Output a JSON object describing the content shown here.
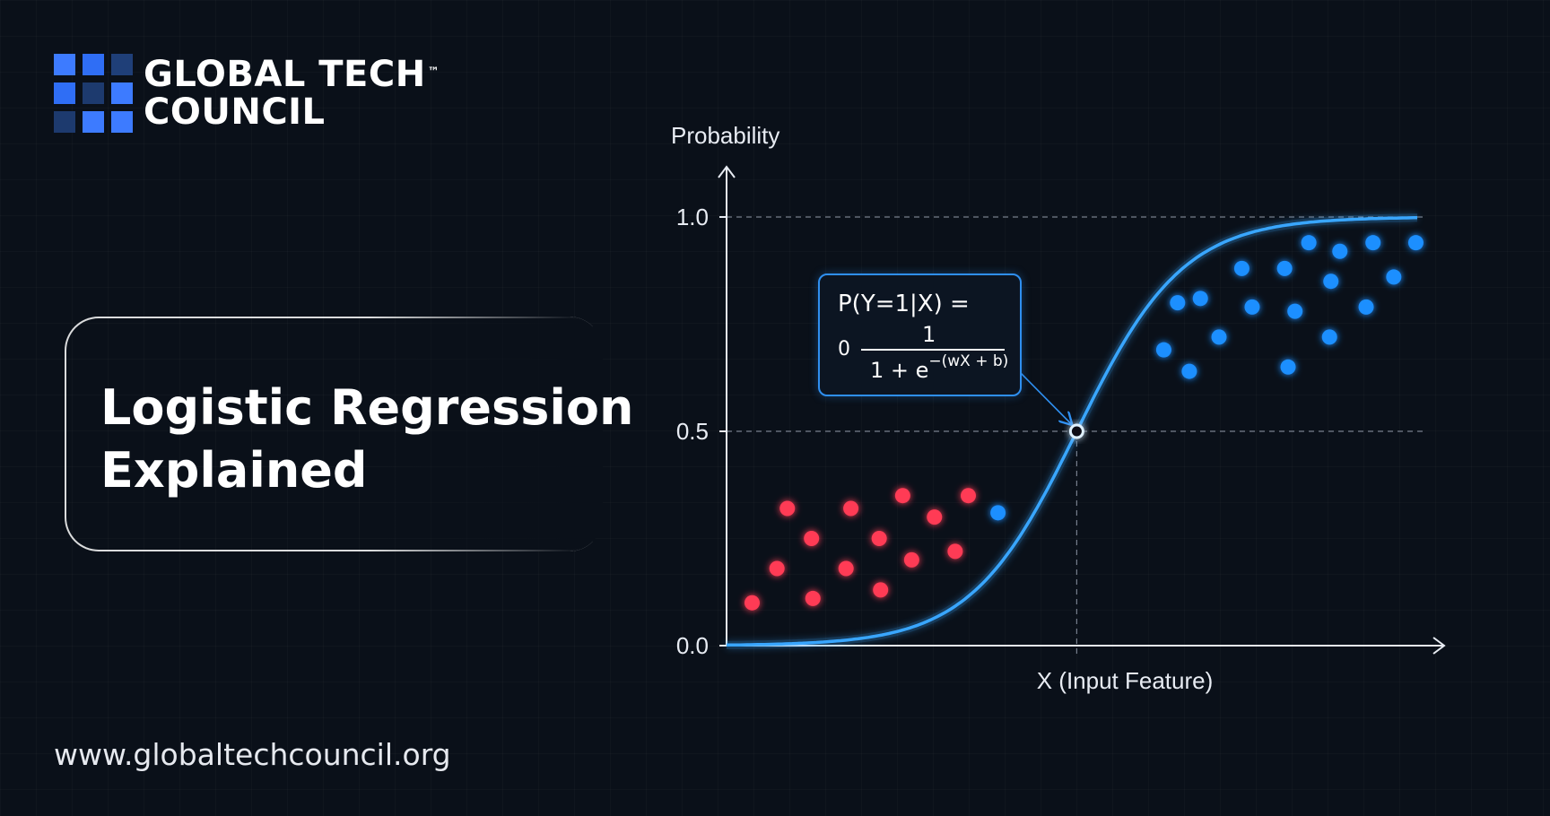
{
  "brand": {
    "name_line1": "GLOBAL TECH",
    "name_line2": "COUNCIL",
    "trademark": "™",
    "logo_colors": [
      "#3d7bff",
      "#2f6ef5",
      "#1f3f78",
      "#2f6ef5",
      "#1d3a6e",
      "#3d7bff",
      "#1d3a6e",
      "#3d7bff",
      "#3d7bff"
    ]
  },
  "title": "Logistic Regression\nExplained",
  "website": "www.globaltechcouncil.org",
  "formula": {
    "lhs": "P(Y=1|X) =",
    "prefix": "0",
    "numerator": "1",
    "denominator_base": "1 + e",
    "denominator_exponent": "−(wX + b)"
  },
  "colors": {
    "curve": "#39a6ff",
    "class0": "#ff3b55",
    "class1": "#1f8fff",
    "axis": "#e8ecf3"
  },
  "chart_data": {
    "type": "scatter",
    "ylabel": "Probability",
    "xlabel": "X (Input Feature)",
    "ylim": [
      0,
      1
    ],
    "xlim": [
      0,
      10
    ],
    "yticks": [
      {
        "value": 0.0,
        "label": "0.0"
      },
      {
        "value": 0.5,
        "label": "0.5"
      },
      {
        "value": 1.0,
        "label": "1.0"
      }
    ],
    "reference_lines_y": [
      0.5,
      1.0
    ],
    "decision_boundary_x": 5.07,
    "curve": {
      "type": "sigmoid",
      "midpoint": 5.07,
      "steepness": 1.3
    },
    "series": [
      {
        "class": "0",
        "points": [
          [
            0.37,
            0.1
          ],
          [
            0.73,
            0.18
          ],
          [
            0.88,
            0.32
          ],
          [
            1.23,
            0.25
          ],
          [
            1.25,
            0.11
          ],
          [
            1.73,
            0.18
          ],
          [
            1.8,
            0.32
          ],
          [
            2.23,
            0.13
          ],
          [
            2.21,
            0.25
          ],
          [
            2.68,
            0.2
          ],
          [
            2.55,
            0.35
          ],
          [
            3.01,
            0.3
          ],
          [
            3.31,
            0.22
          ],
          [
            3.5,
            0.35
          ]
        ]
      },
      {
        "class": "1",
        "points": [
          [
            3.93,
            0.31
          ],
          [
            6.33,
            0.69
          ],
          [
            6.53,
            0.8
          ],
          [
            6.7,
            0.64
          ],
          [
            6.86,
            0.81
          ],
          [
            7.13,
            0.72
          ],
          [
            7.46,
            0.88
          ],
          [
            7.61,
            0.79
          ],
          [
            8.08,
            0.88
          ],
          [
            8.13,
            0.65
          ],
          [
            8.23,
            0.78
          ],
          [
            8.43,
            0.94
          ],
          [
            8.73,
            0.72
          ],
          [
            8.75,
            0.85
          ],
          [
            8.88,
            0.92
          ],
          [
            9.26,
            0.79
          ],
          [
            9.36,
            0.94
          ],
          [
            9.66,
            0.86
          ],
          [
            9.98,
            0.94
          ]
        ]
      }
    ]
  }
}
